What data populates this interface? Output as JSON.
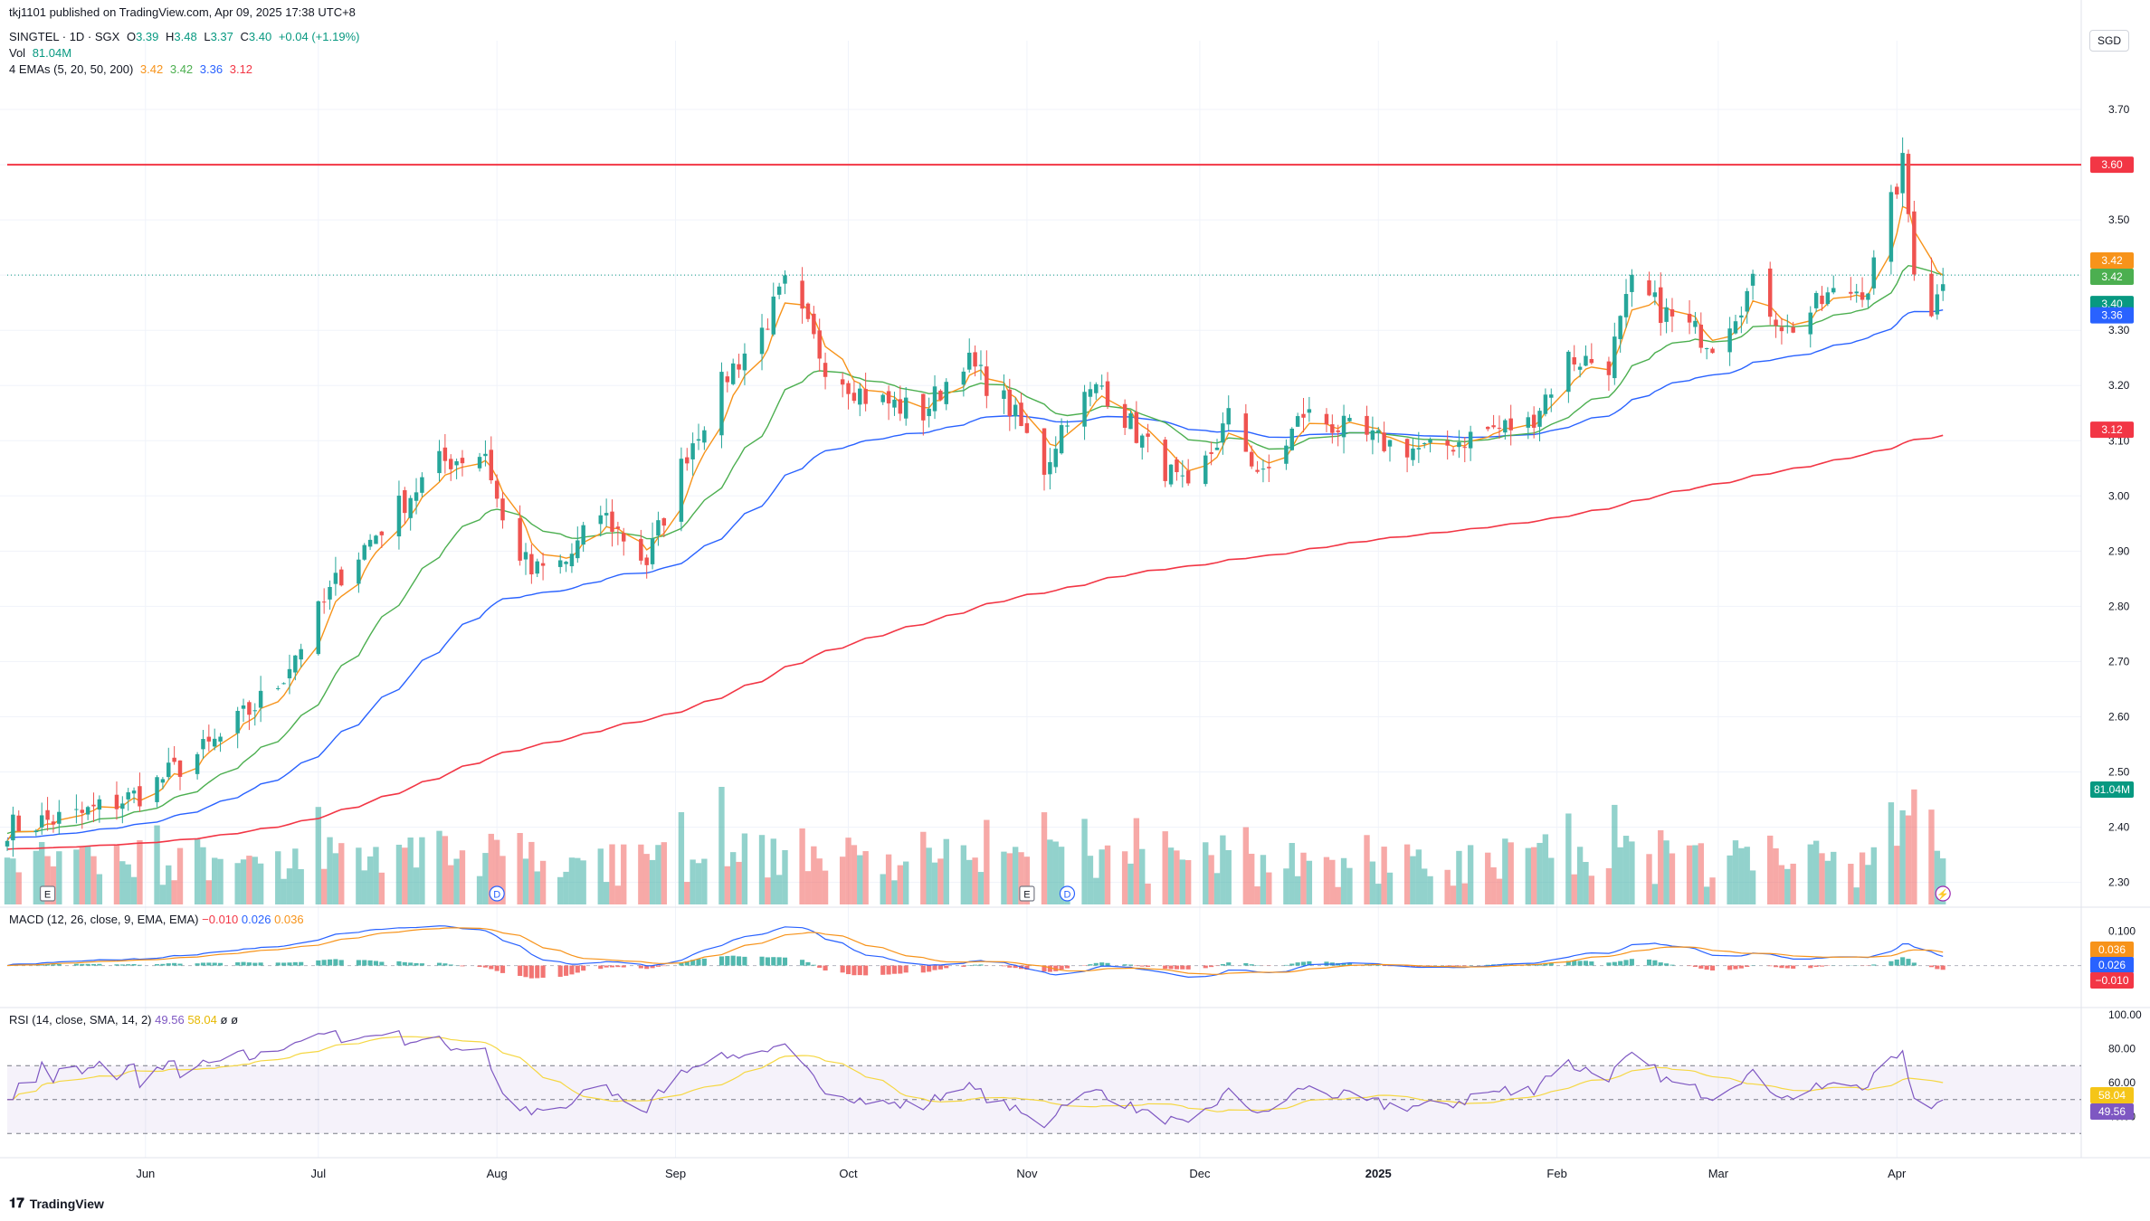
{
  "header": {
    "published": "tkj1101 published on TradingView.com, Apr 09, 2025 17:38 UTC+8",
    "symbol": "SINGTEL · 1D · SGX",
    "o_label": "O",
    "o": "3.39",
    "h_label": "H",
    "h": "3.48",
    "l_label": "L",
    "l": "3.37",
    "c_label": "C",
    "c": "3.40",
    "change": "+0.04 (+1.19%)",
    "vol_label": "Vol",
    "vol": "81.04M",
    "ema_label": "4 EMAs (5, 20, 50, 200)",
    "ema5": "3.42",
    "ema20": "3.42",
    "ema50": "3.36",
    "ema200": "3.12",
    "currency": "SGD"
  },
  "macd_header": {
    "label": "MACD (12, 26, close, 9, EMA, EMA)",
    "hist": "−0.010",
    "macd": "0.026",
    "signal": "0.036"
  },
  "rsi_header": {
    "label": "RSI (14, close, SMA, 14, 2)",
    "rsi": "49.56",
    "sma": "58.04",
    "n1": "ø",
    "n2": "ø"
  },
  "footer": {
    "brand": "TradingView"
  },
  "colors": {
    "up": "#26a69a",
    "down": "#ef5350",
    "ema5": "#f7931a",
    "ema20": "#4caf50",
    "ema50": "#2962ff",
    "ema200": "#f23645",
    "macd": "#2962ff",
    "signal": "#f7931a",
    "rsi": "#7e57c2",
    "rsi_sma": "#f5d742",
    "hline": "#f23645"
  },
  "chart_data": [
    {
      "type": "candlestick",
      "title": "SINGTEL · 1D · SGX",
      "x_axis": {
        "labels": [
          "Jun",
          "Jul",
          "Aug",
          "Sep",
          "Oct",
          "Nov",
          "Dec",
          "2025",
          "Feb",
          "Mar",
          "Apr"
        ],
        "label_dates": [
          "2024-06-01",
          "2024-07-01",
          "2024-08-01",
          "2024-09-01",
          "2024-10-01",
          "2024-11-01",
          "2024-12-01",
          "2025-01-01",
          "2025-02-01",
          "2025-03-01",
          "2025-04-01"
        ],
        "range": [
          "2024-05-08",
          "2025-05-03"
        ]
      },
      "y_axis": {
        "ticks": [
          "3.70",
          "3.60",
          "3.50",
          "3.40",
          "3.30",
          "3.20",
          "3.10",
          "3.00",
          "2.90",
          "2.80",
          "2.70",
          "2.60",
          "2.50",
          "2.40",
          "2.30"
        ],
        "range": [
          2.26,
          3.8
        ],
        "unit": "SGD"
      },
      "horizontal_line": {
        "value": 3.6,
        "label": "3.60"
      },
      "last_price": {
        "value": 3.4,
        "label": "3.40"
      },
      "ema_labels": [
        {
          "name": "EMA 5",
          "value": "3.42"
        },
        {
          "name": "EMA 20",
          "value": "3.42"
        },
        {
          "name": "EMA 50",
          "value": "3.36"
        },
        {
          "name": "EMA 200",
          "value": "3.12"
        }
      ],
      "volume_label": "81.04M",
      "event_markers": [
        {
          "date": "2024-05-15",
          "text": "E"
        },
        {
          "date": "2024-08-01",
          "text": "D"
        },
        {
          "date": "2024-11-01",
          "text": "E"
        },
        {
          "date": "2024-11-08",
          "text": "D"
        },
        {
          "date": "2025-04-09",
          "text": "⚡"
        }
      ],
      "anchors": [
        {
          "date": "2024-05-08",
          "close": 2.4
        },
        {
          "date": "2024-05-20",
          "close": 2.42
        },
        {
          "date": "2024-05-31",
          "close": 2.46
        },
        {
          "date": "2024-06-14",
          "close": 2.56
        },
        {
          "date": "2024-06-24",
          "close": 2.66
        },
        {
          "date": "2024-07-05",
          "close": 2.86
        },
        {
          "date": "2024-07-15",
          "close": 2.98
        },
        {
          "date": "2024-07-22",
          "close": 3.06
        },
        {
          "date": "2024-07-30",
          "close": 3.08
        },
        {
          "date": "2024-08-02",
          "close": 2.95
        },
        {
          "date": "2024-08-07",
          "close": 2.86
        },
        {
          "date": "2024-08-13",
          "close": 2.88
        },
        {
          "date": "2024-08-19",
          "close": 2.97
        },
        {
          "date": "2024-08-27",
          "close": 2.88
        },
        {
          "date": "2024-09-03",
          "close": 3.08
        },
        {
          "date": "2024-09-10",
          "close": 3.22
        },
        {
          "date": "2024-09-16",
          "close": 3.3
        },
        {
          "date": "2024-09-20",
          "close": 3.38
        },
        {
          "date": "2024-09-27",
          "close": 3.24
        },
        {
          "date": "2024-10-04",
          "close": 3.18
        },
        {
          "date": "2024-10-14",
          "close": 3.15
        },
        {
          "date": "2024-10-21",
          "close": 3.25
        },
        {
          "date": "2024-10-29",
          "close": 3.16
        },
        {
          "date": "2024-11-04",
          "close": 3.05
        },
        {
          "date": "2024-11-08",
          "close": 3.15
        },
        {
          "date": "2024-11-14",
          "close": 3.2
        },
        {
          "date": "2024-11-21",
          "close": 3.1
        },
        {
          "date": "2024-11-29",
          "close": 3.0
        },
        {
          "date": "2024-12-06",
          "close": 3.14
        },
        {
          "date": "2024-12-12",
          "close": 3.03
        },
        {
          "date": "2024-12-19",
          "close": 3.15
        },
        {
          "date": "2024-12-31",
          "close": 3.1
        },
        {
          "date": "2025-01-10",
          "close": 3.08
        },
        {
          "date": "2025-01-20",
          "close": 3.12
        },
        {
          "date": "2025-01-27",
          "close": 3.13
        },
        {
          "date": "2025-02-03",
          "close": 3.25
        },
        {
          "date": "2025-02-10",
          "close": 3.24
        },
        {
          "date": "2025-02-14",
          "close": 3.38
        },
        {
          "date": "2025-02-21",
          "close": 3.32
        },
        {
          "date": "2025-02-28",
          "close": 3.28
        },
        {
          "date": "2025-03-07",
          "close": 3.38
        },
        {
          "date": "2025-03-13",
          "close": 3.3
        },
        {
          "date": "2025-03-20",
          "close": 3.36
        },
        {
          "date": "2025-03-27",
          "close": 3.38
        },
        {
          "date": "2025-04-02",
          "close": 3.6
        },
        {
          "date": "2025-04-04",
          "close": 3.42
        },
        {
          "date": "2025-04-07",
          "close": 3.34
        },
        {
          "date": "2025-04-08",
          "close": 3.36
        },
        {
          "date": "2025-04-09",
          "close": 3.4
        }
      ],
      "last_bar": {
        "open": 3.39,
        "high": 3.48,
        "low": 3.37,
        "close": 3.4
      }
    },
    {
      "type": "line",
      "title": "MACD (12, 26, close, 9, EMA, EMA)",
      "y_axis": {
        "ticks": [
          "0.100"
        ],
        "range": [
          -0.09,
          0.14
        ]
      },
      "labels": {
        "signal": "0.036",
        "macd": "0.026",
        "hist": "−0.010"
      }
    },
    {
      "type": "line",
      "title": "RSI (14, close, SMA, 14, 2)",
      "y_axis": {
        "ticks": [
          "100.00",
          "80.00",
          "60.00",
          "40.00"
        ],
        "range": [
          20,
          100
        ]
      },
      "bands": [
        70,
        50,
        30
      ],
      "labels": {
        "sma": "58.04",
        "rsi": "49.56"
      }
    }
  ]
}
